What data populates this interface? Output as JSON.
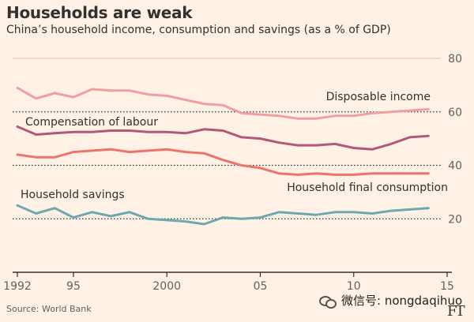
{
  "title": "Households are weak",
  "subtitle": "China’s household income, consumption and savings (as a % of GDP)",
  "source": "Source: World Bank",
  "watermark": "微信号: nongdaqihuo",
  "ft_logo": "FT",
  "chart_data": {
    "type": "line",
    "xlim": [
      1992,
      2015
    ],
    "ylim": [
      0,
      80
    ],
    "x_tick_values": [
      1992,
      1995,
      2000,
      2005,
      2010,
      2015
    ],
    "x_tick_labels": [
      "1992",
      "95",
      "2000",
      "05",
      "10",
      "15"
    ],
    "y_tick_values": [
      20,
      40,
      60,
      80
    ],
    "y_tick_labels": [
      "20",
      "40",
      "60",
      "80"
    ],
    "x": [
      1992,
      1993,
      1994,
      1995,
      1996,
      1997,
      1998,
      1999,
      2000,
      2001,
      2002,
      2003,
      2004,
      2005,
      2006,
      2007,
      2008,
      2009,
      2010,
      2011,
      2012,
      2013,
      2014
    ],
    "series": [
      {
        "name": "Disposable income",
        "color": "#f19ea0",
        "values": [
          69,
          65,
          67,
          65.5,
          68.5,
          68,
          68,
          66.5,
          66,
          64.5,
          63,
          62.5,
          59.5,
          59,
          58.5,
          57.5,
          57.5,
          58.5,
          58.5,
          59.5,
          60,
          60.5,
          61
        ]
      },
      {
        "name": "Compensation of labour",
        "color": "#b2587a",
        "values": [
          54.5,
          51.5,
          52,
          52.5,
          52.5,
          53,
          53,
          52.5,
          52.5,
          52,
          53.5,
          53,
          50.5,
          50,
          48.5,
          47.5,
          47.5,
          48,
          46.5,
          46,
          48,
          50.5,
          51
        ]
      },
      {
        "name": "Household final consumption",
        "color": "#f0726d",
        "values": [
          44,
          43,
          43,
          45,
          45.5,
          46,
          45,
          45.5,
          46,
          45,
          44.5,
          42,
          40,
          39,
          37,
          36.5,
          37,
          36.5,
          36.5,
          37,
          37,
          37,
          37
        ]
      },
      {
        "name": "Household savings",
        "color": "#6ea8ae",
        "values": [
          25,
          22,
          24,
          20.5,
          22.5,
          21,
          22.5,
          20,
          19.5,
          19,
          18,
          20.5,
          20,
          20.5,
          22.5,
          22,
          21.5,
          22.5,
          22.5,
          22,
          23,
          23.5,
          24
        ]
      }
    ],
    "series_labels": [
      "Disposable income",
      "Compensation of labour",
      "Household final consumption",
      "Household savings"
    ]
  }
}
